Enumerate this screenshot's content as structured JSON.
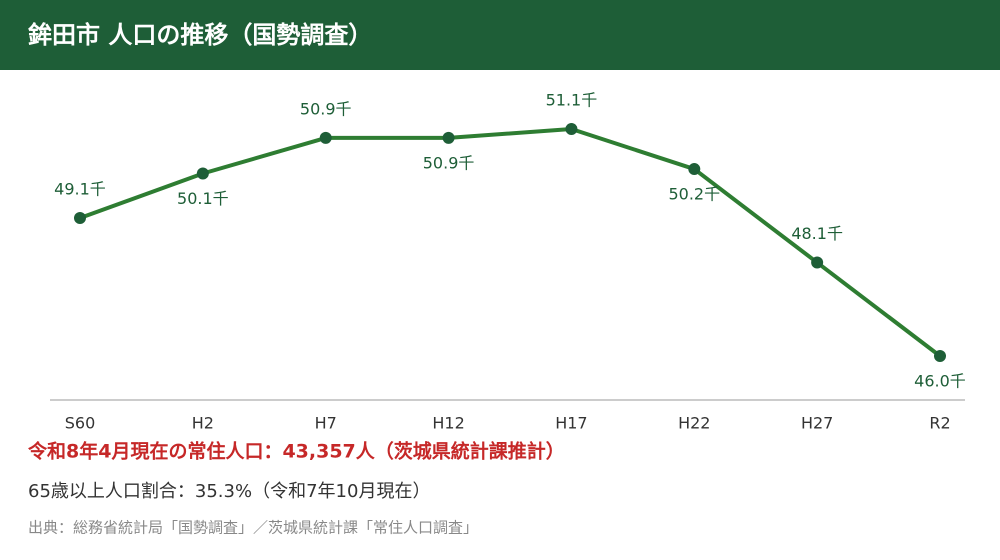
{
  "chart_data": {
    "type": "line",
    "title": "鉾田市 人口の推移（国勢調査）",
    "categories": [
      "S60",
      "H2",
      "H7",
      "H12",
      "H17",
      "H22",
      "H27",
      "R2"
    ],
    "series": [
      {
        "name": "人口",
        "color": "#2e7d32",
        "values": [
          49.1,
          50.1,
          50.9,
          50.9,
          51.1,
          50.2,
          48.1,
          46.0
        ],
        "value_labels": [
          "49.1千",
          "50.1千",
          "50.9千",
          "50.9千",
          "51.1千",
          "50.2千",
          "48.1千",
          "46.0千"
        ]
      }
    ],
    "notes": [
      "令和8年4月現在の常住人口：43,357人（茨城県統計課推計）",
      "65歳以上人口割合：35.3%（令和7年10月現在）",
      "出典：総務省統計局「国勢調査」／茨城県統計課「常住人口調査」"
    ]
  }
}
